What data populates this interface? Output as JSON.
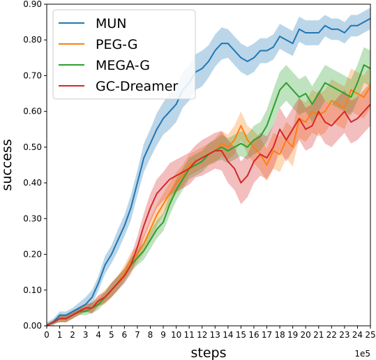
{
  "chart_data": {
    "type": "line",
    "title": "",
    "xlabel": "steps",
    "ylabel": "success",
    "x_multiplier": "1e5",
    "xlim": [
      0,
      25
    ],
    "ylim": [
      0,
      0.9
    ],
    "x_ticks": [
      "0",
      "1",
      "2",
      "3",
      "4",
      "5",
      "6",
      "7",
      "8",
      "9",
      "10",
      "11",
      "12",
      "13",
      "14",
      "15",
      "16",
      "17",
      "18",
      "19",
      "20",
      "21",
      "22",
      "23",
      "24",
      "25"
    ],
    "y_ticks": [
      "0.00",
      "0.10",
      "0.20",
      "0.30",
      "0.40",
      "0.50",
      "0.60",
      "0.70",
      "0.80",
      "0.90"
    ],
    "legend_position": "top-left",
    "grid": false,
    "x": [
      0,
      0.5,
      1,
      1.5,
      2,
      2.5,
      3,
      3.5,
      4,
      4.5,
      5,
      5.5,
      6,
      6.5,
      7,
      7.5,
      8,
      8.5,
      9,
      9.5,
      10,
      10.5,
      11,
      11.5,
      12,
      12.5,
      13,
      13.5,
      14,
      14.5,
      15,
      15.5,
      16,
      16.5,
      17,
      17.5,
      18,
      18.5,
      19,
      19.5,
      20,
      20.5,
      21,
      21.5,
      22,
      22.5,
      23,
      23.5,
      24,
      24.5,
      25
    ],
    "series": [
      {
        "name": "MUN",
        "color": "#1f77b4",
        "values": [
          0.0,
          0.01,
          0.03,
          0.03,
          0.04,
          0.05,
          0.06,
          0.08,
          0.12,
          0.17,
          0.2,
          0.24,
          0.28,
          0.33,
          0.4,
          0.47,
          0.51,
          0.55,
          0.58,
          0.6,
          0.62,
          0.66,
          0.68,
          0.71,
          0.72,
          0.74,
          0.77,
          0.79,
          0.79,
          0.77,
          0.75,
          0.74,
          0.75,
          0.77,
          0.77,
          0.78,
          0.81,
          0.8,
          0.79,
          0.83,
          0.82,
          0.82,
          0.82,
          0.84,
          0.83,
          0.83,
          0.82,
          0.84,
          0.84,
          0.85,
          0.86
        ],
        "band": [
          0.01,
          0.01,
          0.01,
          0.01,
          0.01,
          0.015,
          0.02,
          0.02,
          0.02,
          0.025,
          0.025,
          0.03,
          0.03,
          0.035,
          0.035,
          0.04,
          0.04,
          0.045,
          0.045,
          0.05,
          0.05,
          0.05,
          0.05,
          0.05,
          0.05,
          0.045,
          0.045,
          0.045,
          0.04,
          0.04,
          0.04,
          0.04,
          0.04,
          0.035,
          0.035,
          0.035,
          0.035,
          0.035,
          0.035,
          0.035,
          0.035,
          0.035,
          0.035,
          0.03,
          0.03,
          0.03,
          0.03,
          0.03,
          0.03,
          0.03,
          0.03
        ]
      },
      {
        "name": "PEG-G",
        "color": "#ff7f0e",
        "values": [
          0.0,
          0.01,
          0.02,
          0.02,
          0.03,
          0.04,
          0.05,
          0.05,
          0.07,
          0.08,
          0.1,
          0.12,
          0.15,
          0.18,
          0.2,
          0.23,
          0.27,
          0.31,
          0.34,
          0.37,
          0.4,
          0.42,
          0.45,
          0.46,
          0.47,
          0.48,
          0.49,
          0.51,
          0.5,
          0.52,
          0.56,
          0.52,
          0.5,
          0.48,
          0.45,
          0.49,
          0.48,
          0.52,
          0.5,
          0.58,
          0.57,
          0.6,
          0.59,
          0.6,
          0.63,
          0.62,
          0.61,
          0.66,
          0.65,
          0.64,
          0.67
        ],
        "band": [
          0.005,
          0.005,
          0.01,
          0.01,
          0.01,
          0.01,
          0.01,
          0.015,
          0.015,
          0.02,
          0.02,
          0.02,
          0.02,
          0.025,
          0.025,
          0.025,
          0.03,
          0.03,
          0.03,
          0.03,
          0.03,
          0.03,
          0.03,
          0.03,
          0.03,
          0.03,
          0.035,
          0.035,
          0.035,
          0.04,
          0.04,
          0.04,
          0.045,
          0.045,
          0.045,
          0.05,
          0.05,
          0.05,
          0.055,
          0.055,
          0.055,
          0.06,
          0.06,
          0.06,
          0.06,
          0.06,
          0.06,
          0.06,
          0.06,
          0.06,
          0.06
        ]
      },
      {
        "name": "MEGA-G",
        "color": "#2ca02c",
        "values": [
          0.0,
          0.01,
          0.02,
          0.02,
          0.03,
          0.04,
          0.04,
          0.05,
          0.06,
          0.08,
          0.1,
          0.12,
          0.14,
          0.17,
          0.19,
          0.21,
          0.24,
          0.27,
          0.29,
          0.34,
          0.38,
          0.41,
          0.44,
          0.45,
          0.46,
          0.48,
          0.49,
          0.5,
          0.49,
          0.5,
          0.51,
          0.5,
          0.52,
          0.53,
          0.56,
          0.61,
          0.66,
          0.68,
          0.66,
          0.64,
          0.65,
          0.62,
          0.65,
          0.68,
          0.67,
          0.66,
          0.65,
          0.64,
          0.68,
          0.73,
          0.72
        ],
        "band": [
          0.005,
          0.005,
          0.01,
          0.01,
          0.01,
          0.01,
          0.01,
          0.015,
          0.015,
          0.015,
          0.02,
          0.02,
          0.02,
          0.02,
          0.02,
          0.025,
          0.025,
          0.025,
          0.025,
          0.03,
          0.03,
          0.03,
          0.03,
          0.03,
          0.03,
          0.03,
          0.03,
          0.035,
          0.035,
          0.035,
          0.035,
          0.035,
          0.04,
          0.04,
          0.045,
          0.05,
          0.05,
          0.05,
          0.05,
          0.05,
          0.05,
          0.05,
          0.05,
          0.05,
          0.05,
          0.05,
          0.05,
          0.05,
          0.05,
          0.05,
          0.05
        ]
      },
      {
        "name": "GC-Dreamer",
        "color": "#d62728",
        "values": [
          0.0,
          0.01,
          0.02,
          0.02,
          0.03,
          0.04,
          0.05,
          0.05,
          0.07,
          0.08,
          0.1,
          0.12,
          0.14,
          0.17,
          0.22,
          0.28,
          0.33,
          0.37,
          0.39,
          0.41,
          0.42,
          0.43,
          0.44,
          0.46,
          0.47,
          0.48,
          0.49,
          0.49,
          0.46,
          0.44,
          0.4,
          0.42,
          0.46,
          0.48,
          0.47,
          0.5,
          0.55,
          0.52,
          0.55,
          0.58,
          0.55,
          0.56,
          0.6,
          0.57,
          0.56,
          0.58,
          0.6,
          0.57,
          0.58,
          0.6,
          0.62
        ],
        "band": [
          0.005,
          0.005,
          0.01,
          0.01,
          0.01,
          0.01,
          0.01,
          0.015,
          0.015,
          0.015,
          0.02,
          0.02,
          0.02,
          0.025,
          0.03,
          0.035,
          0.04,
          0.04,
          0.04,
          0.045,
          0.045,
          0.045,
          0.045,
          0.045,
          0.05,
          0.05,
          0.05,
          0.055,
          0.06,
          0.06,
          0.06,
          0.06,
          0.06,
          0.06,
          0.06,
          0.06,
          0.06,
          0.06,
          0.06,
          0.06,
          0.06,
          0.06,
          0.06,
          0.06,
          0.06,
          0.06,
          0.06,
          0.06,
          0.06,
          0.06,
          0.06
        ]
      }
    ]
  }
}
